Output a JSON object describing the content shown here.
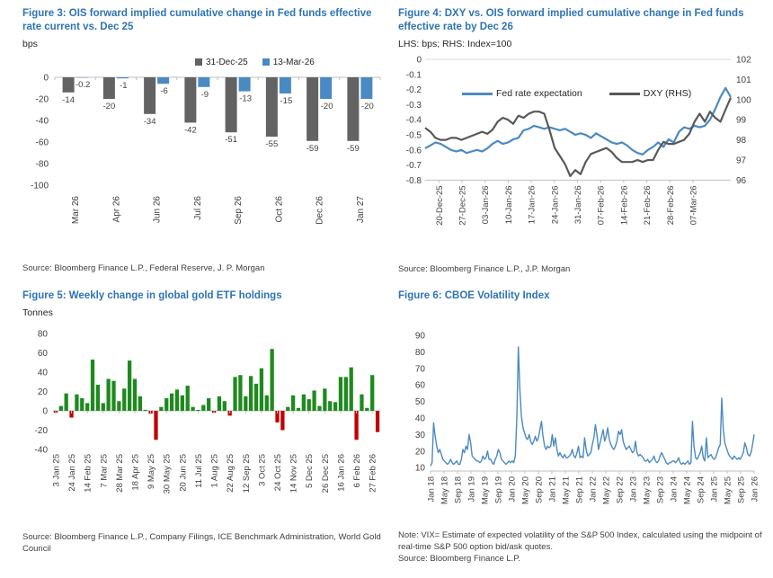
{
  "colors": {
    "title_blue": "#2e74b5",
    "line_blue": "#4a8ac2",
    "dark_gray": "#595959",
    "bar_gray": "#636363",
    "green": "#1e8a1e",
    "red": "#c00000",
    "axis": "#bfbfbf",
    "grid": "#d9d9d9"
  },
  "chart_data": [
    {
      "type": "bar",
      "title": "Figure 3: OIS forward implied cumulative change in Fed funds effective rate current vs. Dec 25",
      "ylabel": "bps",
      "source": "Source: Bloomberg Finance L.P., Federal Reserve, J. P. Morgan",
      "categories": [
        "Mar 26",
        "Apr 26",
        "Jun 26",
        "Jul 26",
        "Sep 26",
        "Oct 26",
        "Dec 26",
        "Jan 27"
      ],
      "ylim": [
        -100,
        0
      ],
      "yticks": [
        0,
        -20,
        -40,
        -60,
        -80,
        -100
      ],
      "grid": false,
      "legend_position": "top-center",
      "series": [
        {
          "name": "31-Dec-25",
          "color": "#636363",
          "values": [
            -14,
            -20,
            -34,
            -42,
            -51,
            -55,
            -59,
            -59
          ],
          "labels": [
            "-14",
            "-20",
            "-34",
            "-42",
            "-51",
            "-55",
            "-59",
            "-59"
          ]
        },
        {
          "name": "13-Mar-26",
          "color": "#4a8ac2",
          "values": [
            -0.2,
            -1,
            -6,
            -9,
            -13,
            -15,
            -20,
            -20
          ],
          "labels": [
            "-0.2",
            "-1",
            "-6",
            "-9",
            "-13",
            "-15",
            "-20",
            "-20"
          ]
        }
      ]
    },
    {
      "type": "line",
      "title": "Figure 4: DXY vs. OIS forward implied cumulative change in Fed funds effective rate by Dec 26",
      "subtitle": "LHS: bps; RHS: Index=100",
      "source": "Source: Bloomberg Finance L.P., J.P. Morgan",
      "x_ticklabels": [
        "20-Dec-25",
        "27-Dec-25",
        "03-Jan-26",
        "10-Jan-26",
        "17-Jan-26",
        "24-Jan-26",
        "31-Jan-26",
        "07-Feb-26",
        "14-Feb-26",
        "21-Feb-26",
        "28-Feb-26",
        "07-Mar-26"
      ],
      "left_axis": {
        "range": [
          -0.8,
          0
        ],
        "ticks": [
          0,
          -0.1,
          -0.2,
          -0.3,
          -0.4,
          -0.5,
          -0.6,
          -0.7,
          -0.8
        ]
      },
      "right_axis": {
        "range": [
          96,
          102
        ],
        "ticks": [
          102,
          101,
          100,
          99,
          98,
          97,
          96
        ]
      },
      "legend_position": "top-center-inside",
      "series": [
        {
          "name": "Fed rate expectation",
          "axis": "left",
          "color": "#4a8ac2",
          "values": [
            -0.59,
            -0.57,
            -0.55,
            -0.56,
            -0.58,
            -0.6,
            -0.61,
            -0.6,
            -0.62,
            -0.61,
            -0.6,
            -0.61,
            -0.59,
            -0.56,
            -0.54,
            -0.56,
            -0.55,
            -0.53,
            -0.52,
            -0.47,
            -0.46,
            -0.44,
            -0.45,
            -0.46,
            -0.45,
            -0.46,
            -0.47,
            -0.46,
            -0.48,
            -0.5,
            -0.49,
            -0.5,
            -0.52,
            -0.49,
            -0.51,
            -0.53,
            -0.55,
            -0.56,
            -0.55,
            -0.57,
            -0.6,
            -0.62,
            -0.63,
            -0.6,
            -0.58,
            -0.55,
            -0.58,
            -0.53,
            -0.55,
            -0.48,
            -0.45,
            -0.46,
            -0.44,
            -0.45,
            -0.44,
            -0.4,
            -0.33,
            -0.25,
            -0.19,
            -0.25
          ]
        },
        {
          "name": "DXY (RHS)",
          "axis": "right",
          "color": "#595959",
          "values": [
            98.6,
            98.4,
            98.1,
            98.0,
            98.0,
            98.1,
            98.1,
            98.0,
            98.1,
            98.2,
            98.3,
            98.4,
            98.3,
            98.5,
            98.9,
            99.1,
            99.0,
            98.8,
            99.2,
            99.1,
            99.3,
            99.4,
            99.4,
            99.3,
            98.5,
            97.6,
            97.2,
            96.8,
            96.2,
            96.5,
            96.3,
            96.9,
            97.3,
            97.4,
            97.5,
            97.6,
            97.4,
            97.1,
            96.9,
            96.9,
            96.9,
            97.0,
            96.9,
            97.0,
            97.0,
            97.5,
            97.9,
            97.8,
            97.8,
            97.9,
            98.0,
            98.3,
            98.9,
            99.3,
            98.9,
            99.4,
            99.1,
            98.9,
            99.5,
            100.1
          ]
        }
      ]
    },
    {
      "type": "bar",
      "title": "Figure 5: Weekly change in global gold ETF holdings",
      "ylabel": "Tonnes",
      "source": "Source: Bloomberg Finance L.P., Company Filings, ICE Benchmark Administration, World Gold Council",
      "ylim": [
        -40,
        80
      ],
      "yticks": [
        80,
        60,
        40,
        20,
        0,
        -20,
        -40
      ],
      "positive_color": "#1e8a1e",
      "negative_color": "#c00000",
      "label_every": 3,
      "x_ticklabels": [
        "3 Jan 25",
        "24 Jan 25",
        "14 Feb 25",
        "7 Mar 25",
        "28 Mar 25",
        "18 Apr 25",
        "9 May 25",
        "30 May 25",
        "20 Jun 25",
        "11 Jul 25",
        "1 Aug 25",
        "22 Aug 25",
        "12 Sep 25",
        "3 Oct 25",
        "24 Oct 25",
        "14 Nov 25",
        "5 Dec 25",
        "26 Dec 25",
        "16 Jan 26",
        "6 Feb 26",
        "27 Feb 26"
      ],
      "values": [
        -2,
        5,
        18,
        -7,
        17,
        13,
        8,
        53,
        27,
        8,
        33,
        31,
        10,
        23,
        52,
        33,
        15,
        1,
        -3,
        -30,
        4,
        13,
        18,
        22,
        16,
        26,
        4,
        1,
        6,
        13,
        -2,
        15,
        10,
        -5,
        35,
        37,
        15,
        36,
        28,
        44,
        16,
        64,
        -12,
        -20,
        4,
        16,
        3,
        17,
        12,
        21,
        5,
        23,
        10,
        9,
        35,
        35,
        45,
        -30,
        17,
        3,
        37,
        -22
      ]
    },
    {
      "type": "line",
      "title": "Figure 6: CBOE Volatility Index",
      "note": "Note: VIX= Estimate of expected volatility of the S&P 500 Index, calculated using the midpoint of real-time S&P 500 option bid/ask quotes.",
      "source": "Source: Bloomberg Finance L.P.",
      "ylim": [
        10,
        90
      ],
      "yticks": [
        90,
        80,
        70,
        60,
        50,
        40,
        30,
        20,
        10
      ],
      "color": "#4a8ac2",
      "x_ticklabels": [
        "Jan 18",
        "May 18",
        "Sep 18",
        "Jan 19",
        "May 19",
        "Sep 19",
        "Jan 20",
        "May 20",
        "Sep 20",
        "Jan 21",
        "May 21",
        "Sep 21",
        "Jan 22",
        "May 22",
        "Sep 22",
        "Jan 23",
        "May 23",
        "Sep 23",
        "Jan 24",
        "May 24",
        "Sep 24",
        "Jan 25",
        "May 25",
        "Sep 25",
        "Jan 26"
      ],
      "values": [
        11,
        13,
        37,
        29,
        23,
        19,
        21,
        18,
        15,
        14,
        13,
        12,
        13,
        15,
        13,
        12,
        13,
        14,
        12,
        12,
        15,
        21,
        19,
        23,
        21,
        30,
        25,
        17,
        16,
        15,
        14,
        14,
        13,
        14,
        17,
        15,
        16,
        20,
        15,
        15,
        13,
        12,
        15,
        17,
        21,
        19,
        15,
        14,
        13,
        12,
        13,
        14,
        13,
        14,
        13,
        17,
        40,
        83,
        57,
        41,
        34,
        31,
        28,
        27,
        30,
        26,
        24,
        26,
        29,
        26,
        28,
        33,
        38,
        29,
        23,
        21,
        23,
        22,
        23,
        30,
        23,
        28,
        21,
        17,
        19,
        17,
        16,
        18,
        16,
        16,
        17,
        18,
        21,
        17,
        16,
        19,
        23,
        16,
        17,
        16,
        28,
        21,
        17,
        18,
        19,
        24,
        28,
        36,
        30,
        21,
        25,
        29,
        33,
        26,
        29,
        34,
        27,
        24,
        22,
        21,
        23,
        26,
        32,
        30,
        33,
        26,
        23,
        21,
        22,
        23,
        21,
        19,
        20,
        26,
        19,
        17,
        18,
        17,
        16,
        14,
        14,
        15,
        13,
        14,
        15,
        17,
        14,
        13,
        14,
        17,
        19,
        17,
        15,
        13,
        12,
        13,
        13,
        14,
        14,
        13,
        14,
        16,
        13,
        12,
        13,
        12,
        13,
        14,
        12,
        13,
        38,
        23,
        16,
        15,
        17,
        19,
        23,
        16,
        14,
        28,
        16,
        17,
        18,
        16,
        15,
        16,
        19,
        22,
        24,
        52,
        33,
        25,
        22,
        19,
        17,
        16,
        15,
        17,
        16,
        15,
        16,
        15,
        17,
        19,
        25,
        22,
        18,
        17,
        19,
        24,
        30
      ]
    }
  ]
}
